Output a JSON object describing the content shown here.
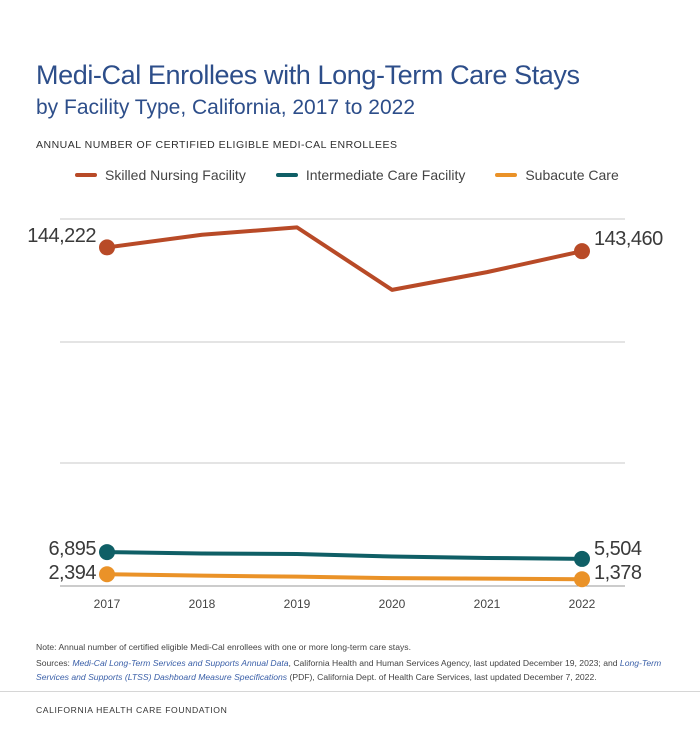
{
  "title": "Medi-Cal Enrollees with Long-Term Care Stays",
  "subtitle": "by Facility Type, California, 2017 to 2022",
  "org": "CALIFORNIA HEALTH CARE FOUNDATION",
  "note": "Note: Annual number of certified eligible Medi-Cal enrollees with one or more long-term care stays.",
  "sources": {
    "prefix": "Sources: ",
    "link1": "Medi-Cal Long-Term Services and Supports Annual Data",
    "text1": ", California Health and Human Services Agency, last updated December 19, 2023; and ",
    "link2": "Long-Term Services and Supports (LTSS) Dashboard Measure Specifications",
    "text2": " (PDF), California Dept. of Health Care Services, last updated December 7, 2022."
  },
  "chart_data": {
    "type": "line",
    "ylabel": "ANNUAL NUMBER OF CERTIFIED ELIGIBLE MEDI-CAL ENROLLEES",
    "categories": [
      "2017",
      "2018",
      "2019",
      "2020",
      "2021",
      "2022"
    ],
    "ylim": [
      0,
      150000
    ],
    "grid": true,
    "legend_position": "top",
    "series": [
      {
        "name": "Skilled Nursing Facility",
        "color": "#b84a27",
        "values": [
          144222,
          146800,
          148300,
          135600,
          139200,
          143460
        ],
        "start_label": "144,222",
        "end_label": "143,460"
      },
      {
        "name": "Intermediate Care Facility",
        "color": "#0f5f66",
        "values": [
          6895,
          6600,
          6500,
          6000,
          5700,
          5504
        ],
        "start_label": "6,895",
        "end_label": "5,504"
      },
      {
        "name": "Subacute Care",
        "color": "#ea9228",
        "values": [
          2394,
          2100,
          1900,
          1600,
          1500,
          1378
        ],
        "start_label": "2,394",
        "end_label": "1,378"
      }
    ]
  }
}
